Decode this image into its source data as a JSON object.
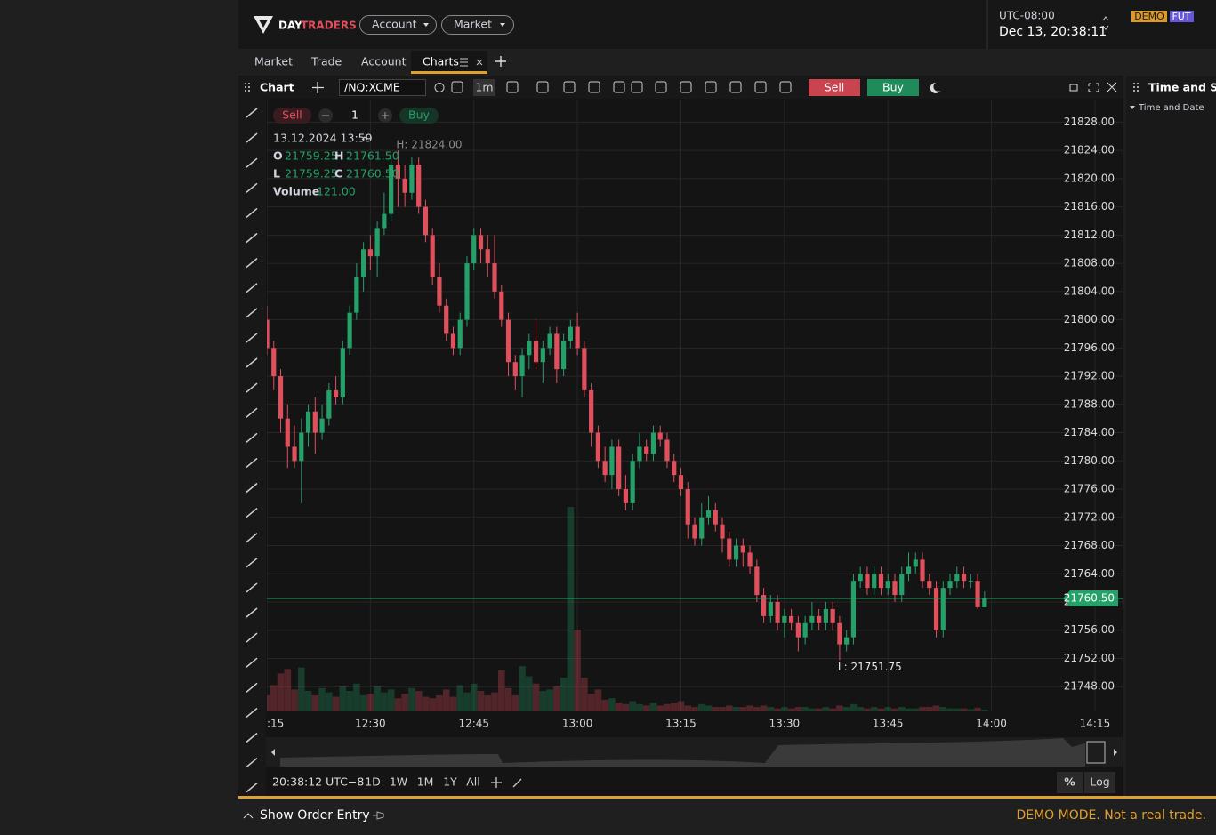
{
  "header": {
    "logo_day": "DAY",
    "logo_traders": "TRADERS",
    "menus": [
      "Account",
      "Market"
    ],
    "timezone": "UTC-08:00",
    "datetime": "Dec 13, 20:38:11",
    "badges": [
      "DEMO",
      "FUT"
    ]
  },
  "tabs": [
    "Market",
    "Trade",
    "Account",
    "Charts"
  ],
  "toolbar": {
    "title": "Chart",
    "symbol": "/NQ:XCME",
    "interval": "1m",
    "sell": "Sell",
    "buy": "Buy"
  },
  "order_panel": {
    "sell": "Sell",
    "quantity": "1",
    "buy": "Buy"
  },
  "legend": {
    "date": "13.12.2024 13:59",
    "o_label": "O",
    "open": "21759.25",
    "h_label": "H",
    "high": "21761.50",
    "l_label": "L",
    "low": "21759.25",
    "c_label": "C",
    "close": "21760.50",
    "volume_label": "Volume",
    "volume": "121.00"
  },
  "chart_data": {
    "type": "candlestick",
    "x": [
      "12:15",
      "12:16",
      "12:17",
      "12:18",
      "12:19",
      "12:20",
      "12:21",
      "12:22",
      "12:23",
      "12:24",
      "12:25",
      "12:26",
      "12:27",
      "12:28",
      "12:29",
      "12:30",
      "12:31",
      "12:32",
      "12:33",
      "12:34",
      "12:35",
      "12:36",
      "12:37",
      "12:38",
      "12:39",
      "12:40",
      "12:41",
      "12:42",
      "12:43",
      "12:44",
      "12:45",
      "12:46",
      "12:47",
      "12:48",
      "12:49",
      "12:50",
      "12:51",
      "12:52",
      "12:53",
      "12:54",
      "12:55",
      "12:56",
      "12:57",
      "12:58",
      "12:59",
      "13:00",
      "13:01",
      "13:02",
      "13:03",
      "13:04",
      "13:05",
      "13:06",
      "13:07",
      "13:08",
      "13:09",
      "13:10",
      "13:11",
      "13:12",
      "13:13",
      "13:14",
      "13:15",
      "13:16",
      "13:17",
      "13:18",
      "13:19",
      "13:20",
      "13:21",
      "13:22",
      "13:23",
      "13:24",
      "13:25",
      "13:26",
      "13:27",
      "13:28",
      "13:29",
      "13:30",
      "13:31",
      "13:32",
      "13:33",
      "13:34",
      "13:35",
      "13:36",
      "13:37",
      "13:38",
      "13:39",
      "13:40",
      "13:41",
      "13:42",
      "13:43",
      "13:44",
      "13:45",
      "13:46",
      "13:47",
      "13:48",
      "13:49",
      "13:50",
      "13:51",
      "13:52",
      "13:53",
      "13:54",
      "13:55",
      "13:56",
      "13:57",
      "13:58",
      "13:59"
    ],
    "ohlc": [
      [
        21800,
        21802,
        21795,
        21796
      ],
      [
        21796,
        21797,
        21790,
        21792
      ],
      [
        21792,
        21793,
        21784,
        21786
      ],
      [
        21786,
        21788,
        21779,
        21782
      ],
      [
        21782,
        21785,
        21779,
        21780
      ],
      [
        21780,
        21786,
        21774,
        21784
      ],
      [
        21784,
        21788,
        21782,
        21787
      ],
      [
        21787,
        21789,
        21781,
        21784
      ],
      [
        21784,
        21788,
        21783,
        21786
      ],
      [
        21786,
        21791,
        21785,
        21790
      ],
      [
        21790,
        21792,
        21788,
        21789
      ],
      [
        21789,
        21797,
        21788,
        21796
      ],
      [
        21796,
        21802,
        21795,
        21801
      ],
      [
        21801,
        21808,
        21800,
        21806
      ],
      [
        21806,
        21811,
        21804,
        21810
      ],
      [
        21810,
        21812,
        21807,
        21809
      ],
      [
        21809,
        21814,
        21806,
        21813
      ],
      [
        21813,
        21818,
        21812,
        21815
      ],
      [
        21815,
        21823,
        21814,
        21822
      ],
      [
        21822,
        21824,
        21816,
        21820
      ],
      [
        21820,
        21822,
        21816,
        21818
      ],
      [
        21818,
        21823,
        21817,
        21822
      ],
      [
        21822,
        21823,
        21815,
        21816
      ],
      [
        21816,
        21817,
        21811,
        21812
      ],
      [
        21812,
        21813,
        21805,
        21806
      ],
      [
        21806,
        21808,
        21801,
        21802
      ],
      [
        21802,
        21803,
        21797,
        21798
      ],
      [
        21798,
        21799,
        21795,
        21796
      ],
      [
        21796,
        21801,
        21795,
        21800
      ],
      [
        21800,
        21809,
        21799,
        21808
      ],
      [
        21808,
        21813,
        21807,
        21812
      ],
      [
        21812,
        21813,
        21808,
        21810
      ],
      [
        21810,
        21812,
        21806,
        21808
      ],
      [
        21808,
        21812,
        21803,
        21804
      ],
      [
        21804,
        21805,
        21799,
        21800
      ],
      [
        21800,
        21801,
        21792,
        21794
      ],
      [
        21794,
        21795,
        21790,
        21792
      ],
      [
        21792,
        21796,
        21789,
        21795
      ],
      [
        21795,
        21798,
        21793,
        21797
      ],
      [
        21797,
        21800,
        21793,
        21794
      ],
      [
        21794,
        21797,
        21791,
        21796
      ],
      [
        21796,
        21799,
        21795,
        21798
      ],
      [
        21798,
        21799,
        21791,
        21793
      ],
      [
        21793,
        21798,
        21792,
        21797
      ],
      [
        21797,
        21800,
        21796,
        21799
      ],
      [
        21799,
        21801,
        21795,
        21796
      ],
      [
        21796,
        21797,
        21789,
        21790
      ],
      [
        21790,
        21791,
        21782,
        21784
      ],
      [
        21784,
        21785,
        21779,
        21780
      ],
      [
        21780,
        21782,
        21777,
        21778
      ],
      [
        21778,
        21783,
        21776,
        21782
      ],
      [
        21782,
        21783,
        21775,
        21776
      ],
      [
        21776,
        21778,
        21773,
        21774
      ],
      [
        21774,
        21781,
        21773,
        21780
      ],
      [
        21780,
        21784,
        21779,
        21782
      ],
      [
        21782,
        21783,
        21780,
        21781
      ],
      [
        21781,
        21785,
        21780,
        21784
      ],
      [
        21784,
        21785,
        21782,
        21783
      ],
      [
        21783,
        21784,
        21779,
        21780
      ],
      [
        21780,
        21781,
        21777,
        21778
      ],
      [
        21778,
        21779,
        21775,
        21776
      ],
      [
        21776,
        21777,
        21769,
        21771
      ],
      [
        21771,
        21772,
        21768,
        21769
      ],
      [
        21769,
        21774,
        21768,
        21772
      ],
      [
        21772,
        21775,
        21771,
        21773
      ],
      [
        21773,
        21774,
        21770,
        21771
      ],
      [
        21771,
        21772,
        21767,
        21769
      ],
      [
        21769,
        21770,
        21765,
        21766
      ],
      [
        21766,
        21769,
        21765,
        21768
      ],
      [
        21768,
        21769,
        21765,
        21767
      ],
      [
        21767,
        21768,
        21764,
        21765
      ],
      [
        21765,
        21766,
        21760,
        21761
      ],
      [
        21761,
        21762,
        21757,
        21758
      ],
      [
        21758,
        21761,
        21757,
        21760
      ],
      [
        21760,
        21761,
        21756,
        21757
      ],
      [
        21757,
        21759,
        21755,
        21758
      ],
      [
        21758,
        21759,
        21756,
        21757
      ],
      [
        21757,
        21758,
        21753,
        21755
      ],
      [
        21755,
        21758,
        21754,
        21757
      ],
      [
        21757,
        21760,
        21756,
        21758
      ],
      [
        21758,
        21759,
        21756,
        21757
      ],
      [
        21757,
        21760,
        21756,
        21759
      ],
      [
        21759,
        21760,
        21756,
        21757
      ],
      [
        21757,
        21758,
        21751.75,
        21754
      ],
      [
        21754,
        21756,
        21753,
        21755
      ],
      [
        21755,
        21764,
        21754,
        21763
      ],
      [
        21763,
        21765,
        21762,
        21764
      ],
      [
        21764,
        21765,
        21761,
        21762
      ],
      [
        21762,
        21765,
        21761,
        21764
      ],
      [
        21764,
        21765,
        21761,
        21762
      ],
      [
        21762,
        21764,
        21761,
        21763
      ],
      [
        21763,
        21764,
        21760,
        21761
      ],
      [
        21761,
        21765,
        21760,
        21764
      ],
      [
        21764,
        21767,
        21763,
        21765
      ],
      [
        21765,
        21767,
        21764,
        21766
      ],
      [
        21766,
        21767,
        21762,
        21763
      ],
      [
        21763,
        21764,
        21761,
        21762
      ],
      [
        21762,
        21763,
        21755,
        21756
      ],
      [
        21756,
        21763,
        21755,
        21762
      ],
      [
        21762,
        21764,
        21761,
        21763
      ],
      [
        21763,
        21765,
        21762,
        21764
      ],
      [
        21764,
        21765,
        21762,
        21763
      ],
      [
        21763,
        21764,
        21762,
        21763
      ],
      [
        21763,
        21764,
        21759,
        21759.25
      ],
      [
        21759.25,
        21761.5,
        21759.25,
        21760.5
      ]
    ],
    "volume": [
      1100,
      1800,
      2600,
      2900,
      1500,
      3000,
      1400,
      1100,
      1600,
      1300,
      1000,
      1700,
      1400,
      1900,
      1100,
      1200,
      1700,
      1300,
      1500,
      900,
      1200,
      1600,
      1400,
      1000,
      900,
      1100,
      1500,
      1000,
      1800,
      1300,
      1900,
      1400,
      1100,
      1300,
      2800,
      1600,
      1100,
      3100,
      2400,
      1900,
      1400,
      1500,
      1700,
      2300,
      14000,
      5600,
      2300,
      1200,
      1500,
      800,
      900,
      600,
      500,
      700,
      500,
      400,
      600,
      400,
      500,
      600,
      700,
      400,
      300,
      500,
      400,
      300,
      300,
      400,
      300,
      300,
      400,
      300,
      400,
      300,
      200,
      300,
      200,
      300,
      300,
      200,
      200,
      300,
      200,
      400,
      300,
      500,
      300,
      200,
      300,
      200,
      300,
      200,
      300,
      200,
      200,
      300,
      300,
      400,
      300,
      200,
      200,
      200,
      150,
      250,
      121
    ],
    "up_color": "#26a069",
    "down_color": "#e0505c",
    "xlim": [
      "12:15",
      "14:19"
    ],
    "xticks": [
      {
        "value": "12:15",
        "label": ":15"
      },
      "12:30",
      "12:45",
      "13:00",
      "13:15",
      "13:30",
      "13:45",
      "14:00",
      "14:15"
    ],
    "ylim": [
      21744.5,
      21831.2
    ],
    "yticks": [
      {
        "value": 21748,
        "label": "21748.00"
      },
      {
        "value": 21752,
        "label": "21752.00"
      },
      {
        "value": 21756,
        "label": "21756.00"
      },
      {
        "value": 21760,
        "label": "21760.00"
      },
      {
        "value": 21764,
        "label": "21764.00"
      },
      {
        "value": 21768,
        "label": "21768.00"
      },
      {
        "value": 21772,
        "label": "21772.00"
      },
      {
        "value": 21776,
        "label": "21776.00"
      },
      {
        "value": 21780,
        "label": "21780.00"
      },
      {
        "value": 21784,
        "label": "21784.00"
      },
      {
        "value": 21788,
        "label": "21788.00"
      },
      {
        "value": 21792,
        "label": "21792.00"
      },
      {
        "value": 21796,
        "label": "21796.00"
      },
      {
        "value": 21800,
        "label": "21800.00"
      },
      {
        "value": 21804,
        "label": "21804.00"
      },
      {
        "value": 21808,
        "label": "21808.00"
      },
      {
        "value": 21812,
        "label": "21812.00"
      },
      {
        "value": 21816,
        "label": "21816.00"
      },
      {
        "value": 21820,
        "label": "21820.00"
      },
      {
        "value": 21824,
        "label": "21824.00"
      },
      {
        "value": 21828,
        "label": "21828.00"
      }
    ],
    "grid": true,
    "last_price": {
      "value": 21760.5,
      "label": "21760.50"
    },
    "annotations": [
      {
        "value": 21824,
        "label": "H: 21824.00"
      },
      {
        "value": 21751.75,
        "label": "L: 21751.75"
      }
    ]
  },
  "range_buttons": [
    "1D",
    "1W",
    "1M",
    "1Y",
    "All"
  ],
  "clock": "20:38:12 UTC−8",
  "scale_buttons": [
    "%",
    "Log"
  ],
  "right_panel": {
    "title": "Time and Sal",
    "subtitle": "Time and Date"
  },
  "footer": {
    "order_entry": "Show Order Entry",
    "demo_notice": "DEMO MODE. Not a real trade."
  }
}
